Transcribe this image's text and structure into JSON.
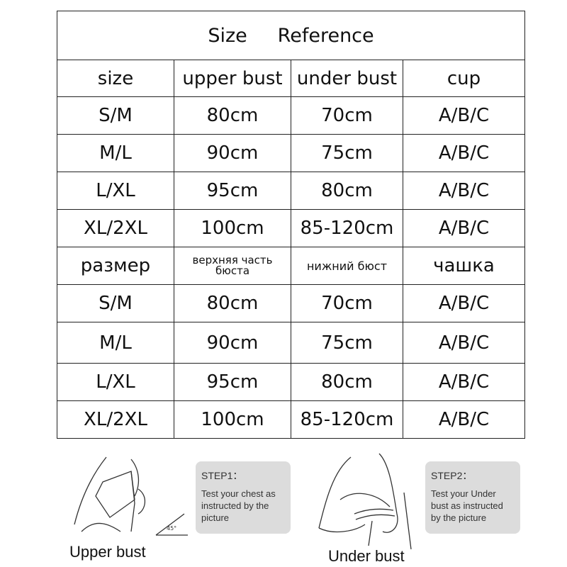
{
  "title": "Size     Reference",
  "headers_en": [
    "size",
    "upper bust",
    "under bust",
    "cup"
  ],
  "rows_en": [
    [
      "S/M",
      "80cm",
      "70cm",
      "A/B/C"
    ],
    [
      "M/L",
      "90cm",
      "75cm",
      "A/B/C"
    ],
    [
      "L/XL",
      "95cm",
      "80cm",
      "A/B/C"
    ],
    [
      "XL/2XL",
      "100cm",
      "85-120cm",
      "A/B/C"
    ]
  ],
  "headers_ru": [
    "размер",
    "верхняя часть бюста",
    "нижний бюст",
    "чашка"
  ],
  "rows_ru": [
    [
      "S/M",
      "80cm",
      "70cm",
      "A/B/C"
    ],
    [
      "M/L",
      "90cm",
      "75cm",
      "A/B/C"
    ],
    [
      "L/XL",
      "95cm",
      "80cm",
      "A/B/C"
    ],
    [
      "XL/2XL",
      "100cm",
      "85-120cm",
      "A/B/C"
    ]
  ],
  "step1": {
    "heading": "STEP1：",
    "text": "Test your chest as instructed by the picture",
    "caption": "Upper bust",
    "angle": "45°"
  },
  "step2": {
    "heading": "STEP2：",
    "text": "Test your Under bust as instructed by the picture",
    "caption": "Under bust"
  }
}
